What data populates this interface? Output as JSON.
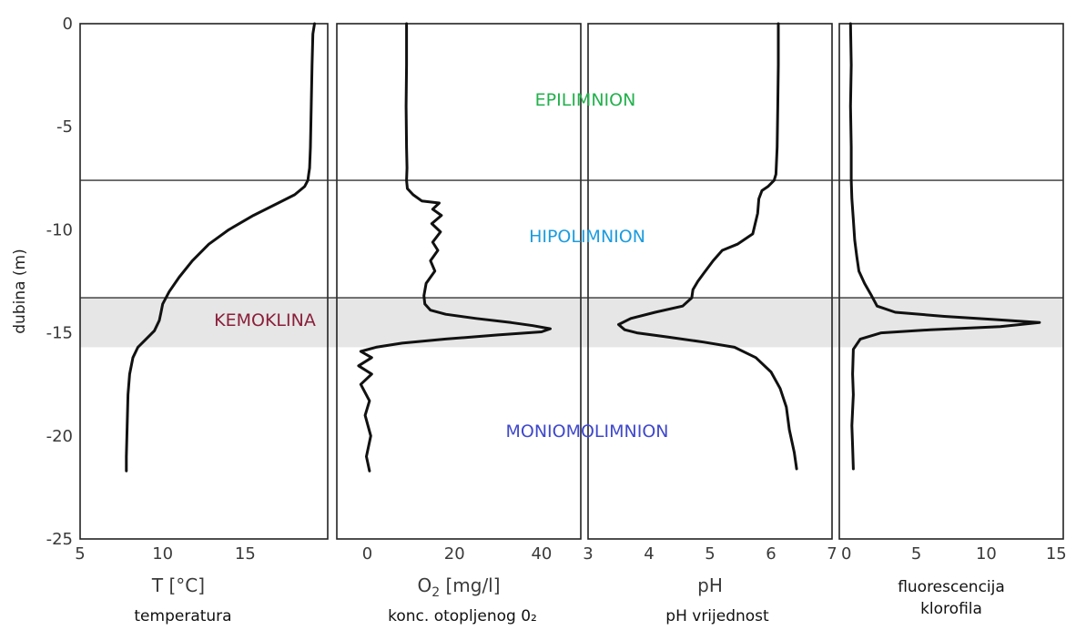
{
  "chart_data": {
    "type": "line",
    "y_axis": {
      "label": "dubina (m)",
      "ticks": [
        "0",
        "-5",
        "-10",
        "-15",
        "-20",
        "-25"
      ],
      "ylim": [
        -25,
        0
      ]
    },
    "boundaries": {
      "upper_line_depth": -7.6,
      "lower_line_depth": -13.3,
      "chemocline_band": [
        -13.3,
        -15.7
      ]
    },
    "zones": [
      {
        "label": "EPILIMNION",
        "color": "#22b14c"
      },
      {
        "label": "HIPOLIMNION",
        "color": "#1b9ce0"
      },
      {
        "label": "KEMOKLINA",
        "color": "#8b1f3a"
      },
      {
        "label": "MONIOMOLIMNION",
        "color": "#3f48cc"
      }
    ],
    "panels": [
      {
        "id": "temperature",
        "xlabel": "T [°C]",
        "xlabel_sub": "",
        "subtitle": "temperatura",
        "xlim": [
          5,
          20
        ],
        "ticks": [
          "5",
          "10",
          "15"
        ],
        "tick_values": [
          5,
          10,
          15
        ],
        "series": [
          {
            "x": [
              19.2,
              19.1,
              19.05,
              19.0,
              18.95,
              18.9,
              18.85,
              18.8,
              18.6,
              18.0,
              17.0,
              15.5,
              14.0,
              12.8,
              11.8,
              11.0,
              10.4,
              10.0,
              9.9,
              9.8,
              9.5,
              9.0,
              8.5,
              8.2,
              8.0,
              7.9,
              7.85,
              7.8,
              7.8
            ],
            "y": [
              0,
              -0.5,
              -2,
              -4,
              -6,
              -7.0,
              -7.3,
              -7.6,
              -7.9,
              -8.3,
              -8.7,
              -9.3,
              -10.0,
              -10.7,
              -11.5,
              -12.3,
              -13.0,
              -13.6,
              -14.0,
              -14.4,
              -14.9,
              -15.3,
              -15.7,
              -16.2,
              -17.0,
              -18.0,
              -19.5,
              -21.0,
              -21.7
            ]
          }
        ]
      },
      {
        "id": "oxygen",
        "xlabel": "O",
        "xlabel_sub": "2",
        "xlabel_rest": " [mg/l]",
        "subtitle": "konc. otopljenog 0₂",
        "xlim": [
          -7,
          49
        ],
        "ticks": [
          "0",
          "20",
          "40"
        ],
        "tick_values": [
          0,
          20,
          40
        ],
        "series": [
          {
            "x": [
              9,
              9,
              8.9,
              9.0,
              9.1,
              9.0,
              9.2,
              10.5,
              12.5,
              16.5,
              15.0,
              17.0,
              14.8,
              16.8,
              15.0,
              16.2,
              14.5,
              15.5,
              13.5,
              13.0,
              13.2,
              14.5,
              18.0,
              25.0,
              33.0,
              38.0,
              42.0,
              40.0,
              30.0,
              18.0,
              8.0,
              2.0,
              -1.5,
              1.0,
              -2.0,
              1.0,
              -1.5,
              0.5,
              -0.5,
              0.8,
              -0.2,
              0.5
            ],
            "y": [
              0,
              -2,
              -4,
              -6,
              -7.0,
              -7.6,
              -8.0,
              -8.3,
              -8.6,
              -8.7,
              -9.0,
              -9.3,
              -9.7,
              -10.1,
              -10.6,
              -11.0,
              -11.5,
              -12.0,
              -12.6,
              -13.2,
              -13.6,
              -13.9,
              -14.1,
              -14.3,
              -14.5,
              -14.65,
              -14.8,
              -14.95,
              -15.1,
              -15.3,
              -15.5,
              -15.7,
              -15.9,
              -16.2,
              -16.6,
              -17.0,
              -17.5,
              -18.3,
              -19.0,
              -20.0,
              -21.0,
              -21.7
            ]
          }
        ]
      },
      {
        "id": "ph",
        "xlabel": "pH",
        "xlabel_sub": "",
        "subtitle": "pH vrijednost",
        "xlim": [
          3,
          7
        ],
        "ticks": [
          "3",
          "4",
          "5",
          "6",
          "7"
        ],
        "tick_values": [
          3,
          4,
          5,
          6,
          7
        ],
        "series": [
          {
            "x": [
              6.12,
              6.12,
              6.11,
              6.1,
              6.08,
              6.05,
              5.95,
              5.85,
              5.8,
              5.78,
              5.7,
              5.45,
              5.2,
              5.05,
              4.9,
              4.8,
              4.72,
              4.7,
              4.55,
              4.1,
              3.7,
              3.5,
              3.6,
              3.8,
              4.3,
              4.9,
              5.4,
              5.75,
              6.0,
              6.15,
              6.25,
              6.3,
              6.38,
              6.42
            ],
            "y": [
              0,
              -2,
              -4,
              -6,
              -7.3,
              -7.6,
              -7.9,
              -8.1,
              -8.5,
              -9.2,
              -10.2,
              -10.7,
              -11.0,
              -11.5,
              -12.1,
              -12.5,
              -12.9,
              -13.3,
              -13.7,
              -14.0,
              -14.3,
              -14.6,
              -14.85,
              -15.0,
              -15.2,
              -15.45,
              -15.7,
              -16.2,
              -16.9,
              -17.7,
              -18.6,
              -19.7,
              -20.8,
              -21.6
            ]
          }
        ]
      },
      {
        "id": "fluorescence",
        "xlabel": "",
        "xlabel_sub": "",
        "subtitle": "fluorescencija klorofila",
        "subtitle_lines": [
          "fluorescencija",
          "klorofila"
        ],
        "xlim": [
          -0.5,
          15.5
        ],
        "ticks": [
          "0",
          "5",
          "10",
          "15"
        ],
        "tick_values": [
          0,
          5,
          10,
          15
        ],
        "series": [
          {
            "x": [
              0.3,
              0.35,
              0.3,
              0.35,
              0.35,
              0.4,
              0.5,
              0.6,
              0.75,
              0.9,
              1.3,
              1.8,
              2.2,
              3.5,
              7.0,
              10.5,
              13.8,
              11.0,
              6.0,
              2.5,
              1.0,
              0.5,
              0.45,
              0.5,
              0.4,
              0.45,
              0.5
            ],
            "y": [
              0,
              -2,
              -4,
              -6,
              -7.6,
              -8.5,
              -9.5,
              -10.5,
              -11.3,
              -12.0,
              -12.6,
              -13.2,
              -13.7,
              -14.0,
              -14.2,
              -14.35,
              -14.5,
              -14.7,
              -14.85,
              -15.0,
              -15.3,
              -15.8,
              -17.0,
              -18.0,
              -19.5,
              -20.5,
              -21.6
            ]
          }
        ]
      }
    ]
  }
}
